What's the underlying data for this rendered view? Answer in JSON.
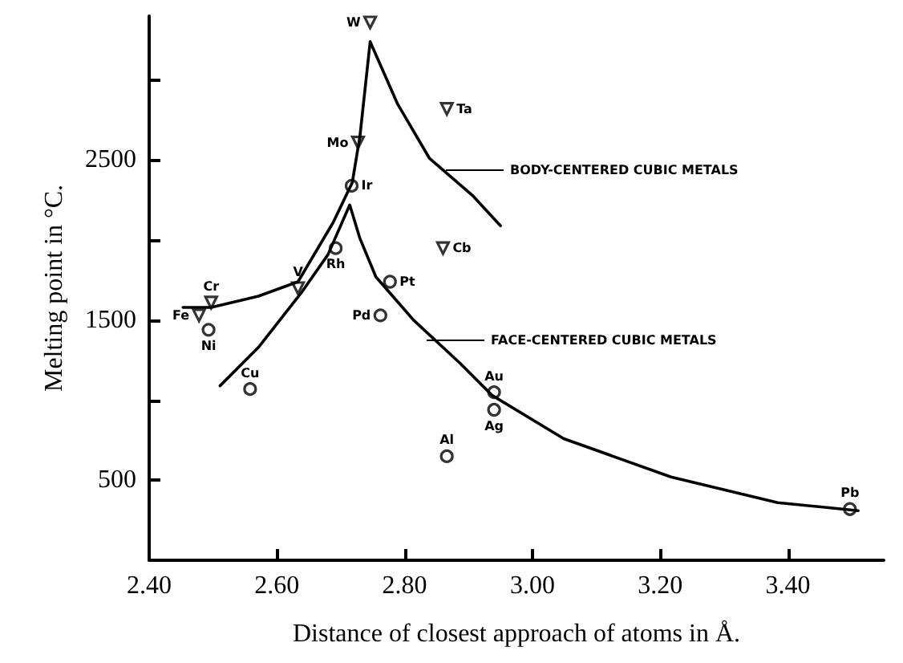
{
  "chart_data": {
    "type": "scatter",
    "xlabel": "Distance of closest approach of atoms in Å.",
    "ylabel": "Melting point in °C.",
    "xlim": [
      2.4,
      3.55
    ],
    "ylim": [
      0,
      3400
    ],
    "xticks": [
      {
        "value": 2.4,
        "label": "2.40"
      },
      {
        "value": 2.6,
        "label": "2.60"
      },
      {
        "value": 2.8,
        "label": "2.80"
      },
      {
        "value": 3.0,
        "label": "3.00"
      },
      {
        "value": 3.2,
        "label": "3.20"
      },
      {
        "value": 3.4,
        "label": "3.40"
      }
    ],
    "yticks": [
      500,
      {
        "value": 1000,
        "label": null
      },
      1500,
      {
        "value": 2000,
        "label": null
      },
      2500,
      {
        "value": 3000,
        "label": null
      }
    ],
    "grid": false,
    "series": [
      {
        "marker": "triangle",
        "color": "#000000",
        "x": [
          2.746,
          2.866,
          2.727,
          2.86,
          2.633,
          2.497,
          2.478
        ],
        "values": [
          3360,
          2820,
          2610,
          1950,
          1700,
          1610,
          1530
        ]
      },
      {
        "marker": "circle",
        "color": "#000000",
        "x": [
          2.717,
          2.692,
          2.777,
          2.762,
          2.493,
          2.558,
          2.866,
          2.94,
          2.94,
          3.497
        ],
        "values": [
          2340,
          1950,
          1740,
          1530,
          1440,
          1070,
          650,
          1050,
          940,
          320
        ]
      },
      {
        "type": "line",
        "marker": "none",
        "color": "#000000",
        "x": [
          2.453,
          2.497,
          2.571,
          2.633,
          2.688,
          2.718,
          2.73,
          2.746,
          2.789,
          2.839,
          2.906,
          2.95
        ],
        "values": [
          1580,
          1580,
          1650,
          1740,
          2110,
          2360,
          2650,
          3240,
          2850,
          2510,
          2280,
          2090
        ]
      },
      {
        "type": "line",
        "marker": "none",
        "color": "#000000",
        "x": [
          2.511,
          2.571,
          2.638,
          2.68,
          2.714,
          2.73,
          2.755,
          2.814,
          2.887,
          2.937,
          3.049,
          3.217,
          3.384,
          3.51
        ],
        "values": [
          1090,
          1330,
          1670,
          1910,
          2220,
          2010,
          1770,
          1500,
          1230,
          1030,
          760,
          520,
          360,
          310
        ]
      }
    ],
    "annotations": [
      "BODY-CENTERED CUBIC METALS",
      "FACE-CENTERED CUBIC METALS",
      {
        "text": "W",
        "x": 2.746,
        "y": 3360
      },
      {
        "text": "Ta",
        "x": 2.866,
        "y": 2820
      },
      {
        "text": "Mo",
        "x": 2.727,
        "y": 2610
      },
      {
        "text": "Cb",
        "x": 2.86,
        "y": 1950
      },
      {
        "text": "V",
        "x": 2.633,
        "y": 1700
      },
      {
        "text": "Cr",
        "x": 2.497,
        "y": 1610
      },
      {
        "text": "Fe",
        "x": 2.478,
        "y": 1530
      },
      {
        "text": "Ir",
        "x": 2.717,
        "y": 2340
      },
      {
        "text": "Rh",
        "x": 2.692,
        "y": 1950
      },
      {
        "text": "Pt",
        "x": 2.777,
        "y": 1740
      },
      {
        "text": "Pd",
        "x": 2.762,
        "y": 1530
      },
      {
        "text": "Ni",
        "x": 2.493,
        "y": 1440
      },
      {
        "text": "Cu",
        "x": 2.558,
        "y": 1070
      },
      {
        "text": "Al",
        "x": 2.866,
        "y": 650
      },
      {
        "text": "Au",
        "x": 2.94,
        "y": 1050
      },
      {
        "text": "Ag",
        "x": 2.94,
        "y": 940
      },
      {
        "text": "Pb",
        "x": 3.497,
        "y": 320
      }
    ]
  }
}
